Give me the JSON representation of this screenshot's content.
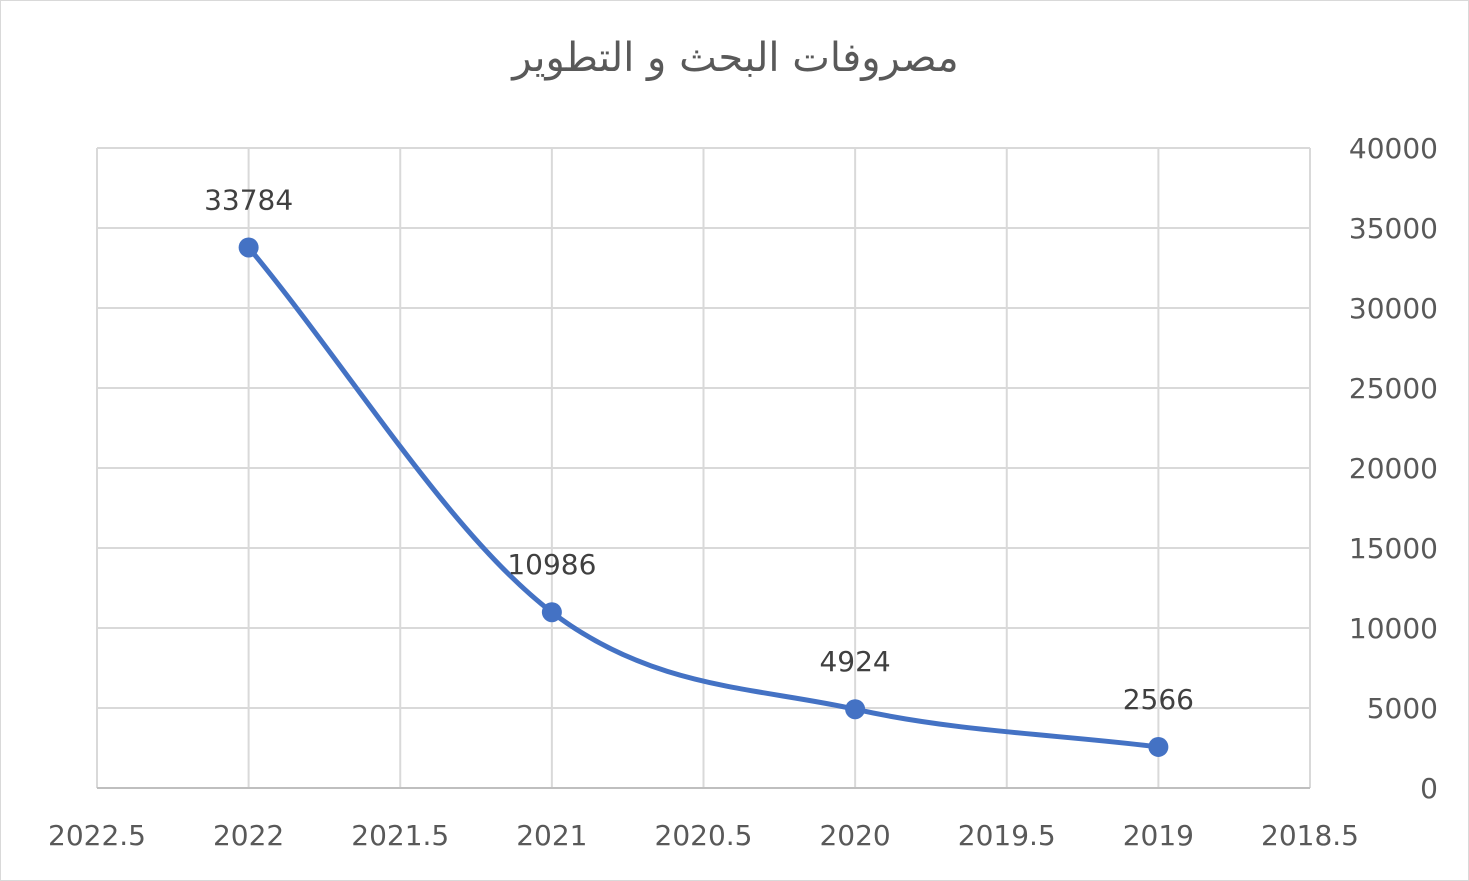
{
  "chart_data": {
    "type": "scatter",
    "title": "مصروفات البحث و التطوير",
    "x": [
      2022,
      2021,
      2020,
      2019
    ],
    "y": [
      33784,
      10986,
      4924,
      2566
    ],
    "data_labels": [
      "33784",
      "10986",
      "4924",
      "2566"
    ],
    "x_axis": {
      "reversed": true,
      "range": [
        2018.5,
        2022.5
      ],
      "ticks": [
        "2022.5",
        "2022",
        "2021.5",
        "2021",
        "2020.5",
        "2020",
        "2019.5",
        "2019",
        "2018.5"
      ]
    },
    "y_axis": {
      "position": "right",
      "range": [
        0,
        40000
      ],
      "ticks": [
        "40000",
        "35000",
        "30000",
        "25000",
        "20000",
        "15000",
        "10000",
        "5000",
        "0"
      ]
    },
    "line": "smooth",
    "markers": true,
    "grid": true,
    "legend": "none",
    "color": "#4472c4"
  }
}
